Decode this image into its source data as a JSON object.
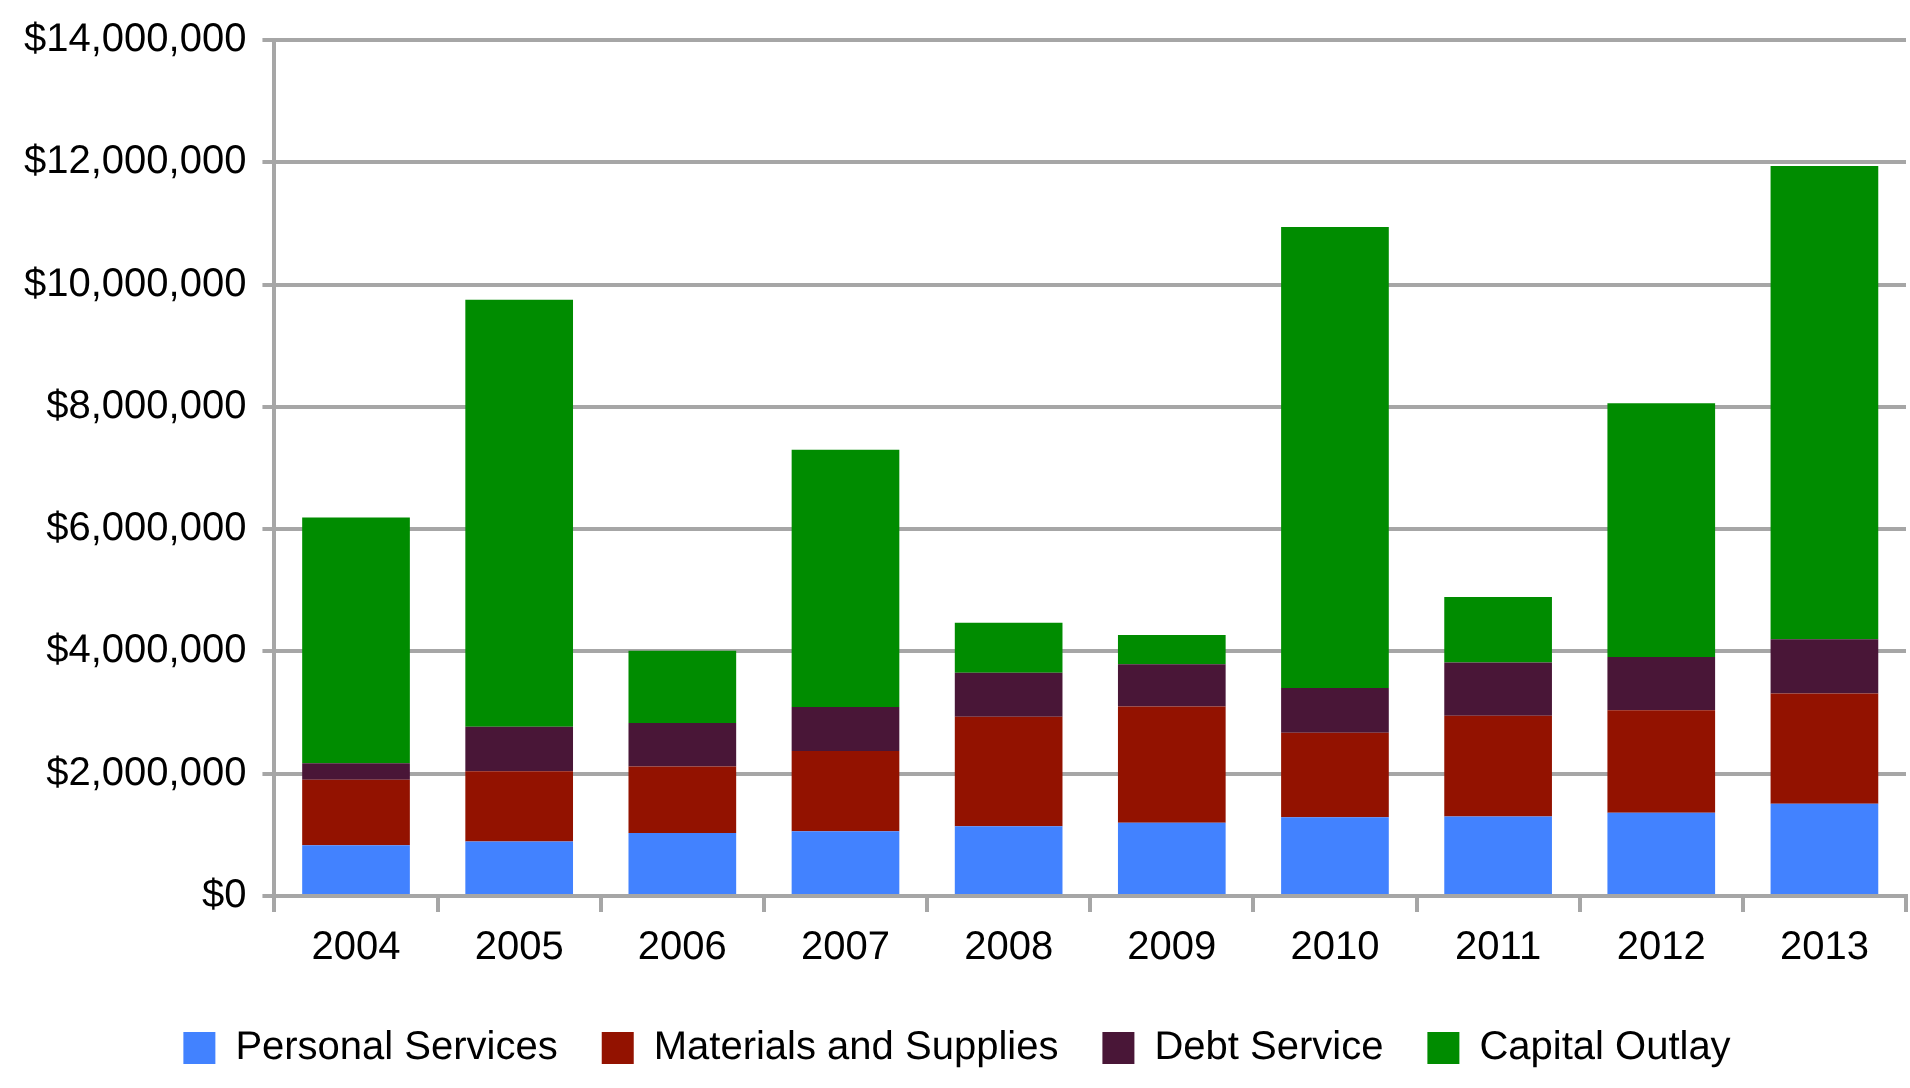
{
  "chart_data": {
    "type": "bar",
    "stacked": true,
    "categories": [
      "2004",
      "2005",
      "2006",
      "2007",
      "2008",
      "2009",
      "2010",
      "2011",
      "2012",
      "2013"
    ],
    "series": [
      {
        "name": "Personal Services",
        "color": "#4282ff",
        "values": [
          830000,
          890000,
          1030000,
          1060000,
          1140000,
          1200000,
          1290000,
          1300000,
          1360000,
          1510000
        ]
      },
      {
        "name": "Materials and Supplies",
        "color": "#931200",
        "values": [
          1070000,
          1150000,
          1090000,
          1310000,
          1790000,
          1900000,
          1380000,
          1650000,
          1680000,
          1800000
        ]
      },
      {
        "name": "Debt Service",
        "color": "#491637",
        "values": [
          270000,
          730000,
          710000,
          720000,
          720000,
          690000,
          730000,
          870000,
          870000,
          890000
        ]
      },
      {
        "name": "Capital Outlay",
        "color": "#008c00",
        "values": [
          4020000,
          6980000,
          1180000,
          4210000,
          820000,
          480000,
          7540000,
          1070000,
          4150000,
          7740000
        ]
      }
    ],
    "ylim": [
      0,
      14000000
    ],
    "yticks": [
      {
        "value": 0,
        "label": "$0"
      },
      {
        "value": 2000000,
        "label": "$2,000,000"
      },
      {
        "value": 4000000,
        "label": "$4,000,000"
      },
      {
        "value": 6000000,
        "label": "$6,000,000"
      },
      {
        "value": 8000000,
        "label": "$8,000,000"
      },
      {
        "value": 10000000,
        "label": "$10,000,000"
      },
      {
        "value": 12000000,
        "label": "$12,000,000"
      },
      {
        "value": 14000000,
        "label": "$14,000,000"
      }
    ],
    "grid": "y",
    "legend": "bottom"
  }
}
